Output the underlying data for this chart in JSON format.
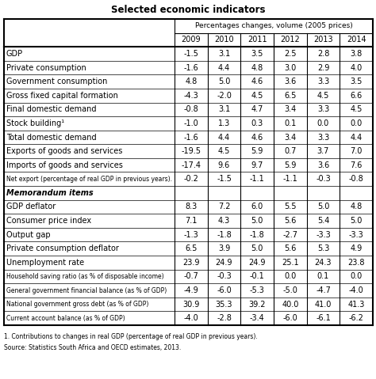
{
  "title": "Selected economic indicators",
  "subtitle": "Percentages changes, volume (2005 prices)",
  "years": [
    "2009",
    "2010",
    "2011",
    "2012",
    "2013",
    "2014"
  ],
  "rows": [
    {
      "label": "GDP",
      "values": [
        "-1.5",
        "3.1",
        "3.5",
        "2.5",
        "2.8",
        "3.8"
      ],
      "bold": false,
      "italic": false,
      "small_label": false,
      "memo": false
    },
    {
      "label": "Private consumption",
      "values": [
        "-1.6",
        "4.4",
        "4.8",
        "3.0",
        "2.9",
        "4.0"
      ],
      "bold": false,
      "italic": false,
      "small_label": false,
      "memo": false
    },
    {
      "label": "Government consumption",
      "values": [
        "4.8",
        "5.0",
        "4.6",
        "3.6",
        "3.3",
        "3.5"
      ],
      "bold": false,
      "italic": false,
      "small_label": false,
      "memo": false
    },
    {
      "label": "Gross fixed capital formation",
      "values": [
        "-4.3",
        "-2.0",
        "4.5",
        "6.5",
        "4.5",
        "6.6"
      ],
      "bold": false,
      "italic": false,
      "small_label": false,
      "memo": false
    },
    {
      "label": "Final domestic demand",
      "values": [
        "-0.8",
        "3.1",
        "4.7",
        "3.4",
        "3.3",
        "4.5"
      ],
      "bold": false,
      "italic": false,
      "small_label": false,
      "memo": false
    },
    {
      "label": "Stock building¹",
      "values": [
        "-1.0",
        "1.3",
        "0.3",
        "0.1",
        "0.0",
        "0.0"
      ],
      "bold": false,
      "italic": false,
      "small_label": false,
      "memo": false
    },
    {
      "label": "Total domestic demand",
      "values": [
        "-1.6",
        "4.4",
        "4.6",
        "3.4",
        "3.3",
        "4.4"
      ],
      "bold": false,
      "italic": false,
      "small_label": false,
      "memo": false
    },
    {
      "label": "Exports of goods and services",
      "values": [
        "-19.5",
        "4.5",
        "5.9",
        "0.7",
        "3.7",
        "7.0"
      ],
      "bold": false,
      "italic": false,
      "small_label": false,
      "memo": false
    },
    {
      "label": "Imports of goods and services",
      "values": [
        "-17.4",
        "9.6",
        "9.7",
        "5.9",
        "3.6",
        "7.6"
      ],
      "bold": false,
      "italic": false,
      "small_label": false,
      "memo": false
    },
    {
      "label": "Net export (percentage of real GDP in previous years).",
      "values": [
        "-0.2",
        "-1.5",
        "-1.1",
        "-1.1",
        "-0.3",
        "-0.8"
      ],
      "bold": false,
      "italic": false,
      "small_label": true,
      "memo": false
    },
    {
      "label": "Memorandum items",
      "values": [
        "",
        "",
        "",
        "",
        "",
        ""
      ],
      "bold": true,
      "italic": true,
      "small_label": false,
      "memo": true
    },
    {
      "label": "GDP deflator",
      "values": [
        "8.3",
        "7.2",
        "6.0",
        "5.5",
        "5.0",
        "4.8"
      ],
      "bold": false,
      "italic": false,
      "small_label": false,
      "memo": false
    },
    {
      "label": "Consumer price index",
      "values": [
        "7.1",
        "4.3",
        "5.0",
        "5.6",
        "5.4",
        "5.0"
      ],
      "bold": false,
      "italic": false,
      "small_label": false,
      "memo": false
    },
    {
      "label": "Output gap",
      "values": [
        "-1.3",
        "-1.8",
        "-1.8",
        "-2.7",
        "-3.3",
        "-3.3"
      ],
      "bold": false,
      "italic": false,
      "small_label": false,
      "memo": false
    },
    {
      "label": "Private consumption deflator",
      "values": [
        "6.5",
        "3.9",
        "5.0",
        "5.6",
        "5.3",
        "4.9"
      ],
      "bold": false,
      "italic": false,
      "small_label": false,
      "memo": false
    },
    {
      "label": "Unemployment rate",
      "values": [
        "23.9",
        "24.9",
        "24.9",
        "25.1",
        "24.3",
        "23.8"
      ],
      "bold": false,
      "italic": false,
      "small_label": false,
      "memo": false
    },
    {
      "label": "Household saving ratio (as % of disposable income)",
      "values": [
        "-0.7",
        "-0.3",
        "-0.1",
        "0.0",
        "0.1",
        "0.0"
      ],
      "bold": false,
      "italic": false,
      "small_label": true,
      "memo": false
    },
    {
      "label": "General government financial balance (as % of GDP)",
      "values": [
        "-4.9",
        "-6.0",
        "-5.3",
        "-5.0",
        "-4.7",
        "-4.0"
      ],
      "bold": false,
      "italic": false,
      "small_label": true,
      "memo": false
    },
    {
      "label": "National government gross debt (as % of GDP)",
      "values": [
        "30.9",
        "35.3",
        "39.2",
        "40.0",
        "41.0",
        "41.3"
      ],
      "bold": false,
      "italic": false,
      "small_label": true,
      "memo": false
    },
    {
      "label": "Current account balance (as % of GDP)",
      "values": [
        "-4.0",
        "-2.8",
        "-3.4",
        "-6.0",
        "-6.1",
        "-6.2"
      ],
      "bold": false,
      "italic": false,
      "small_label": true,
      "memo": false
    }
  ],
  "footnote1": "1. Contributions to changes in real GDP (percentage of real GDP in previous years).",
  "footnote2": "Source: Statistics South Africa and OECD estimates, 2013.",
  "title_fontsize": 8.5,
  "subtitle_fontsize": 6.5,
  "year_fontsize": 7.0,
  "data_fontsize": 7.0,
  "label_fontsize": 7.0,
  "small_label_fontsize": 5.5,
  "footnote_fontsize": 5.5
}
